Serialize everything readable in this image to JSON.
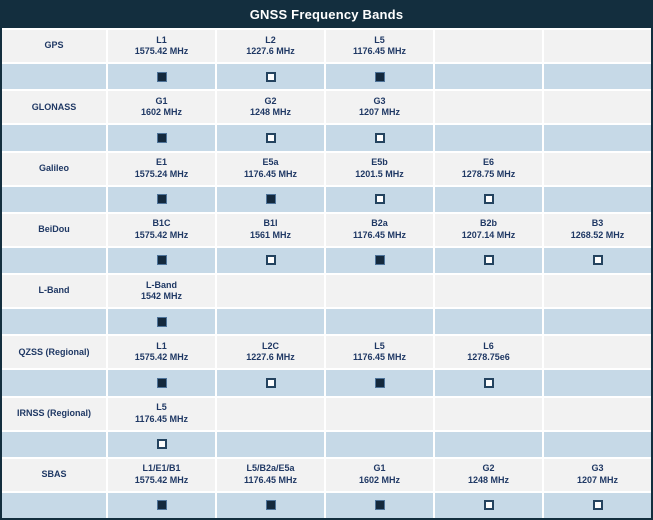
{
  "title": "GNSS Frequency Bands",
  "colors": {
    "header_bg": "#132e3e",
    "header_text": "#ffffff",
    "band_row_bg": "#f2f2f2",
    "check_row_bg": "#c6d9e7",
    "text": "#1f3864",
    "checkbox_filled": "#14293d"
  },
  "table": {
    "band_columns": 5,
    "systems": [
      {
        "name": "GPS",
        "bands": [
          {
            "band": "L1",
            "freq": "1575.42 MHz",
            "enabled": true
          },
          {
            "band": "L2",
            "freq": "1227.6 MHz",
            "enabled": false
          },
          {
            "band": "L5",
            "freq": "1176.45 MHz",
            "enabled": true
          }
        ]
      },
      {
        "name": "GLONASS",
        "bands": [
          {
            "band": "G1",
            "freq": "1602 MHz",
            "enabled": true
          },
          {
            "band": "G2",
            "freq": "1248 MHz",
            "enabled": false
          },
          {
            "band": "G3",
            "freq": "1207 MHz",
            "enabled": false
          }
        ]
      },
      {
        "name": "Galileo",
        "bands": [
          {
            "band": "E1",
            "freq": "1575.24 MHz",
            "enabled": true
          },
          {
            "band": "E5a",
            "freq": "1176.45 MHz",
            "enabled": true
          },
          {
            "band": "E5b",
            "freq": "1201.5 MHz",
            "enabled": false
          },
          {
            "band": "E6",
            "freq": "1278.75 MHz",
            "enabled": false
          }
        ]
      },
      {
        "name": "BeiDou",
        "bands": [
          {
            "band": "B1C",
            "freq": "1575.42 MHz",
            "enabled": true
          },
          {
            "band": "B1I",
            "freq": "1561 MHz",
            "enabled": false
          },
          {
            "band": "B2a",
            "freq": "1176.45 MHz",
            "enabled": true
          },
          {
            "band": "B2b",
            "freq": "1207.14 MHz",
            "enabled": false
          },
          {
            "band": "B3",
            "freq": "1268.52 MHz",
            "enabled": false
          }
        ]
      },
      {
        "name": "L-Band",
        "bands": [
          {
            "band": "L-Band",
            "freq": "1542 MHz",
            "enabled": true
          }
        ]
      },
      {
        "name": "QZSS (Regional)",
        "bands": [
          {
            "band": "L1",
            "freq": "1575.42 MHz",
            "enabled": true
          },
          {
            "band": "L2C",
            "freq": "1227.6 MHz",
            "enabled": false
          },
          {
            "band": "L5",
            "freq": "1176.45 MHz",
            "enabled": true
          },
          {
            "band": "L6",
            "freq": "1278.75e6",
            "enabled": false
          }
        ]
      },
      {
        "name": "IRNSS (Regional)",
        "bands": [
          {
            "band": "L5",
            "freq": "1176.45 MHz",
            "enabled": false
          }
        ]
      },
      {
        "name": "SBAS",
        "bands": [
          {
            "band": "L1/E1/B1",
            "freq": "1575.42 MHz",
            "enabled": true
          },
          {
            "band": "L5/B2a/E5a",
            "freq": "1176.45 MHz",
            "enabled": true
          },
          {
            "band": "G1",
            "freq": "1602 MHz",
            "enabled": true
          },
          {
            "band": "G2",
            "freq": "1248 MHz",
            "enabled": false
          },
          {
            "band": "G3",
            "freq": "1207 MHz",
            "enabled": false
          }
        ]
      }
    ]
  }
}
